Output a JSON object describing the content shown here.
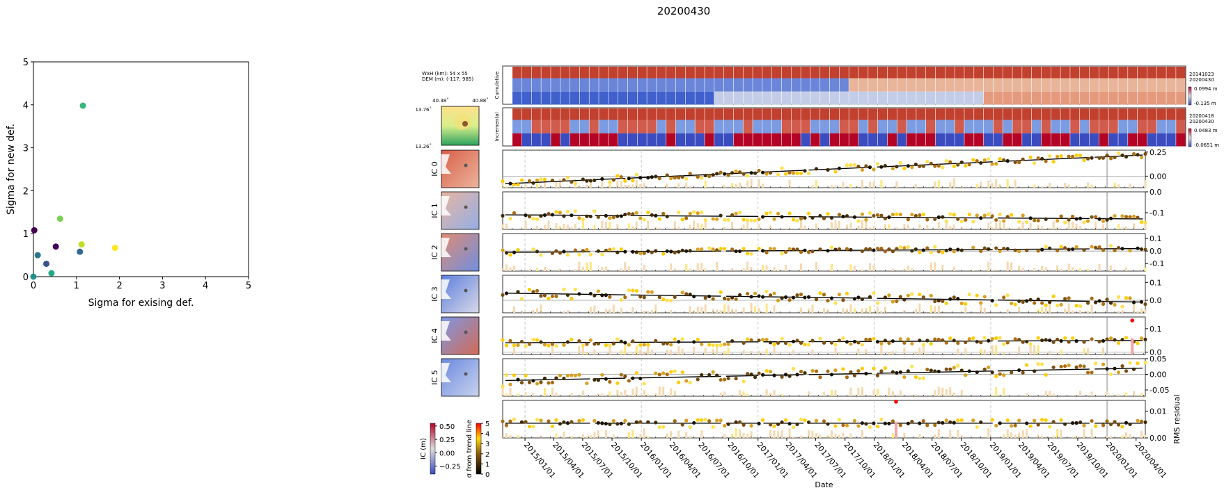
{
  "figure": {
    "suptitle": "20200430"
  },
  "chart_data": [
    {
      "type": "scatter",
      "name": "sigma-scatter",
      "xlabel": "Sigma for exising def.",
      "ylabel": "Sigma for new def.",
      "xlim": [
        0,
        5
      ],
      "ylim": [
        0,
        5
      ],
      "xticks": [
        "0",
        "1",
        "2",
        "3",
        "4",
        "5"
      ],
      "yticks": [
        "0",
        "1",
        "2",
        "3",
        "4",
        "5"
      ],
      "grid": false,
      "points": [
        {
          "x": 0.02,
          "y": 1.08,
          "color": "#440154"
        },
        {
          "x": 0.0,
          "y": 0.0,
          "color": "#21918c"
        },
        {
          "x": 0.1,
          "y": 0.5,
          "color": "#2a788e"
        },
        {
          "x": 0.3,
          "y": 0.3,
          "color": "#3b528b"
        },
        {
          "x": 0.42,
          "y": 0.08,
          "color": "#22a884"
        },
        {
          "x": 0.52,
          "y": 0.7,
          "color": "#440154"
        },
        {
          "x": 0.62,
          "y": 1.35,
          "color": "#7ad151"
        },
        {
          "x": 1.08,
          "y": 0.58,
          "color": "#31688e"
        },
        {
          "x": 1.12,
          "y": 0.75,
          "color": "#bddf26"
        },
        {
          "x": 1.15,
          "y": 3.98,
          "color": "#35b779"
        },
        {
          "x": 1.9,
          "y": 0.67,
          "color": "#fde725"
        }
      ]
    },
    {
      "type": "line",
      "name": "ic-time-series",
      "xlabel": "Date",
      "x_range": [
        "2014-10-23",
        "2020-04-30"
      ],
      "date_ticks": [
        "2015/01/01",
        "2015/04/01",
        "2015/07/01",
        "2015/10/01",
        "2016/01/01",
        "2016/04/01",
        "2016/07/01",
        "2016/10/01",
        "2017/01/01",
        "2017/04/01",
        "2017/07/01",
        "2017/10/01",
        "2018/01/01",
        "2018/04/01",
        "2018/07/01",
        "2018/10/01",
        "2019/01/01",
        "2019/04/01",
        "2019/07/01",
        "2019/10/01",
        "2020/01/01",
        "2020/04/01"
      ],
      "series": [
        {
          "label": "IC 0",
          "ylim": [
            -0.12,
            0.27
          ],
          "yticks": [
            "0.25",
            "0.00"
          ],
          "tick_values": [
            0.25,
            0.0
          ],
          "trend_start": -0.08,
          "trend_end": 0.22,
          "noise": 0.035
        },
        {
          "label": "IC 1",
          "ylim": [
            -0.18,
            0.0
          ],
          "yticks": [
            "0.0",
            "-0.1"
          ],
          "tick_values": [
            0.0,
            -0.1
          ],
          "trend_start": -0.11,
          "trend_end": -0.13,
          "noise": 0.02
        },
        {
          "label": "IC 2",
          "ylim": [
            -0.16,
            0.14
          ],
          "yticks": [
            "0.1",
            "0.0",
            "-0.1"
          ],
          "tick_values": [
            0.1,
            0.0,
            -0.1
          ],
          "trend_start": -0.01,
          "trend_end": 0.02,
          "noise": 0.025
        },
        {
          "label": "IC 3",
          "ylim": [
            -0.07,
            0.14
          ],
          "yticks": [
            "0.1",
            "0.0"
          ],
          "tick_values": [
            0.1,
            0.0
          ],
          "trend_start": 0.04,
          "trend_end": -0.01,
          "noise": 0.03
        },
        {
          "label": "IC 4",
          "ylim": [
            -0.01,
            0.15
          ],
          "yticks": [
            "0.1",
            "0.0"
          ],
          "tick_values": [
            0.1,
            0.0
          ],
          "trend_start": 0.04,
          "trend_end": 0.05,
          "noise": 0.015
        },
        {
          "label": "IC 5",
          "ylim": [
            -0.07,
            0.05
          ],
          "yticks": [
            "0.05",
            "0.00",
            "-0.05"
          ],
          "tick_values": [
            0.05,
            0.0,
            -0.05
          ],
          "trend_start": -0.02,
          "trend_end": 0.02,
          "noise": 0.02
        },
        {
          "label": "RMS\nresidual",
          "ylim": [
            0.0,
            0.014
          ],
          "yticks": [
            "0.01",
            "0.00"
          ],
          "tick_values": [
            0.01,
            0.0
          ],
          "trend_start": 0.0055,
          "trend_end": 0.0055,
          "noise": 0.0015
        }
      ]
    }
  ],
  "thumbnails": {
    "rows": [
      {
        "label": "Cumulative",
        "first_date": "20141023",
        "last_date": "20200430",
        "max": "0.0994 m",
        "min": "-0.135 m"
      },
      {
        "label": "Incremental",
        "first_date": "20200418",
        "last_date": "20200430",
        "max": "0.0483 m",
        "min": "-0.0651 m"
      }
    ]
  },
  "dem": {
    "size": "WxH (km): 54 x 55",
    "elev": "DEM (m): (-117, 985)",
    "lon_left": "40.38˚",
    "lon_right": "40.88˚",
    "lat_top": "13.76˚",
    "lat_bottom": "13.26˚"
  },
  "colorbars": {
    "ic_label": "IC (m)",
    "ic_ticks": [
      "0.50",
      "0.25",
      "0.00",
      "−0.25"
    ],
    "sigma_label": "σ from trend line",
    "sigma_ticks": [
      "5",
      "4",
      "3",
      "2",
      "1",
      "0"
    ]
  },
  "colors": {
    "trend": "#000000",
    "outlier": "#ff0000",
    "coolwarm_low": "#3b4cc0",
    "coolwarm_high": "#b40426"
  }
}
